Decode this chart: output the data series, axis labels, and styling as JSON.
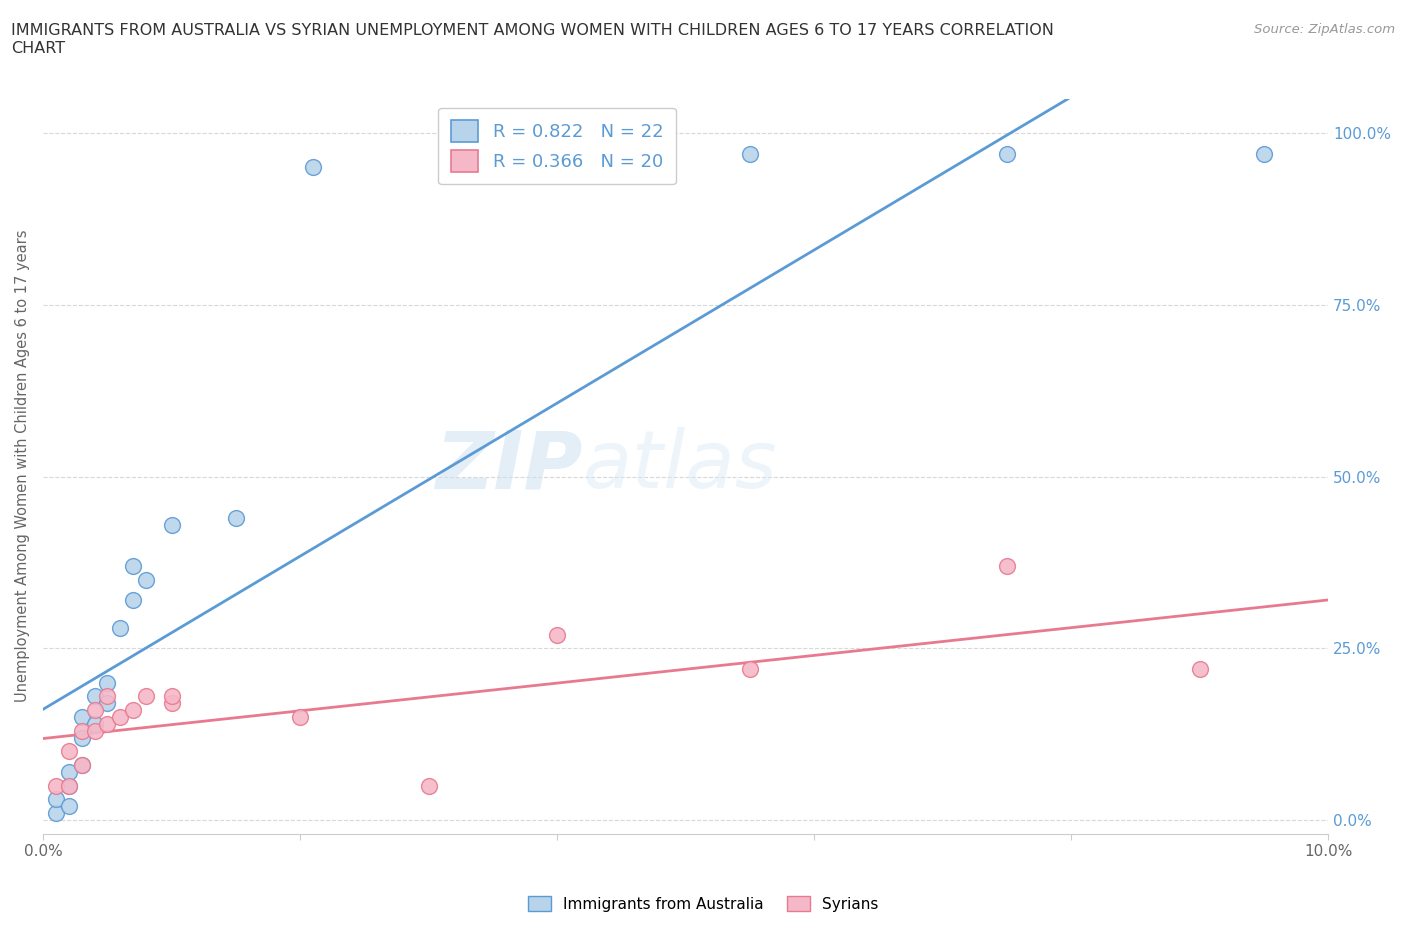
{
  "title": "IMMIGRANTS FROM AUSTRALIA VS SYRIAN UNEMPLOYMENT AMONG WOMEN WITH CHILDREN AGES 6 TO 17 YEARS CORRELATION\nCHART",
  "source": "Source: ZipAtlas.com",
  "ylabel": "Unemployment Among Women with Children Ages 6 to 17 years",
  "xlim": [
    0.0,
    0.1
  ],
  "ylim": [
    -0.02,
    1.05
  ],
  "xticks": [
    0.0,
    0.02,
    0.04,
    0.06,
    0.08,
    0.1
  ],
  "ytick_positions": [
    0.0,
    0.25,
    0.5,
    0.75,
    1.0
  ],
  "ytick_labels": [
    "0.0%",
    "25.0%",
    "50.0%",
    "75.0%",
    "100.0%"
  ],
  "xtick_labels": [
    "0.0%",
    "",
    "",
    "",
    "",
    "10.0%"
  ],
  "australia_x": [
    0.001,
    0.001,
    0.002,
    0.002,
    0.002,
    0.003,
    0.003,
    0.003,
    0.004,
    0.004,
    0.005,
    0.005,
    0.006,
    0.007,
    0.007,
    0.008,
    0.01,
    0.015,
    0.021,
    0.055,
    0.075,
    0.095
  ],
  "australia_y": [
    0.01,
    0.03,
    0.02,
    0.05,
    0.07,
    0.08,
    0.12,
    0.15,
    0.14,
    0.18,
    0.17,
    0.2,
    0.28,
    0.32,
    0.37,
    0.35,
    0.43,
    0.44,
    0.95,
    0.97,
    0.97,
    0.97
  ],
  "syria_x": [
    0.001,
    0.002,
    0.002,
    0.003,
    0.003,
    0.004,
    0.004,
    0.005,
    0.005,
    0.006,
    0.007,
    0.008,
    0.01,
    0.01,
    0.02,
    0.03,
    0.04,
    0.055,
    0.075,
    0.09
  ],
  "syria_y": [
    0.05,
    0.05,
    0.1,
    0.08,
    0.13,
    0.13,
    0.16,
    0.14,
    0.18,
    0.15,
    0.16,
    0.18,
    0.17,
    0.18,
    0.15,
    0.05,
    0.27,
    0.22,
    0.37,
    0.22
  ],
  "australia_color": "#b8d4ea",
  "syria_color": "#f5b8c8",
  "australia_line_color": "#5b9bd5",
  "syria_line_color": "#e87a90",
  "r_australia": 0.822,
  "n_australia": 22,
  "r_syria": 0.366,
  "n_syria": 20,
  "watermark_zip": "ZIP",
  "watermark_atlas": "atlas",
  "background_color": "#ffffff",
  "grid_color": "#d8d8d8"
}
